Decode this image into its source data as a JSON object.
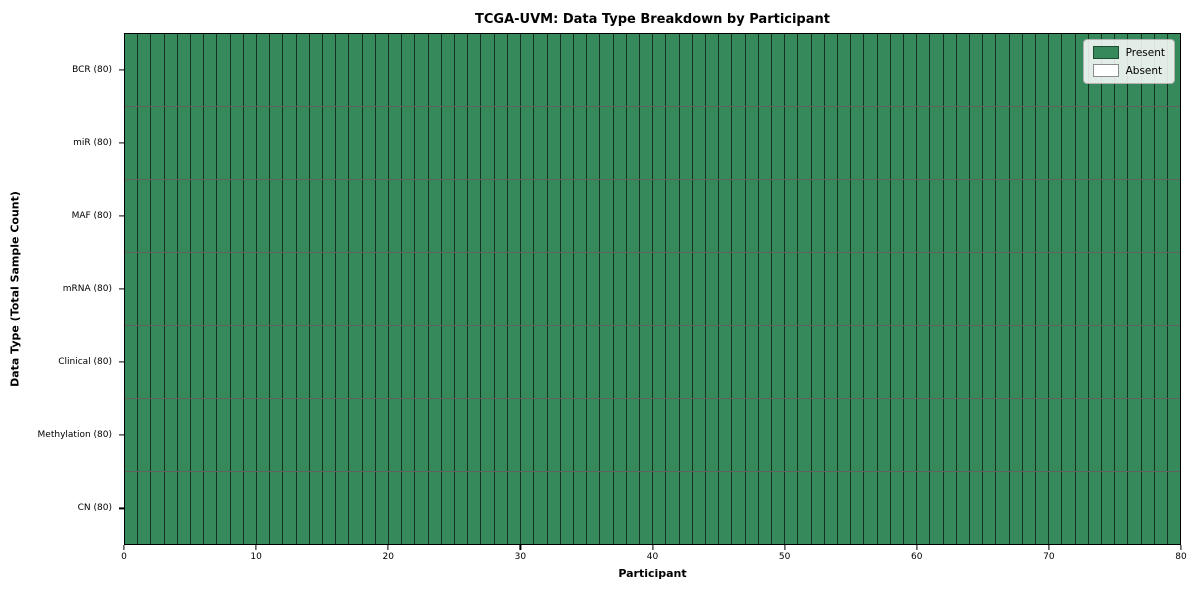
{
  "title": "TCGA-UVM: Data Type Breakdown by Participant",
  "chart_data": {
    "type": "heatmap",
    "title": "TCGA-UVM: Data Type Breakdown by Participant",
    "xlabel": "Participant",
    "ylabel": "Data Type (Total Sample Count)",
    "xlim": [
      0,
      80
    ],
    "x_ticks": [
      0,
      10,
      20,
      30,
      40,
      50,
      60,
      70,
      80
    ],
    "n_participants": 80,
    "grid": "cell-borders",
    "legend_position": "upper right",
    "rows": [
      {
        "name": "BCR",
        "label": "BCR (80)",
        "total": 80,
        "present": 80,
        "absent": 0
      },
      {
        "name": "miR",
        "label": "miR (80)",
        "total": 80,
        "present": 80,
        "absent": 0
      },
      {
        "name": "MAF",
        "label": "MAF (80)",
        "total": 80,
        "present": 80,
        "absent": 0
      },
      {
        "name": "mRNA",
        "label": "mRNA (80)",
        "total": 80,
        "present": 80,
        "absent": 0
      },
      {
        "name": "Clinical",
        "label": "Clinical (80)",
        "total": 80,
        "present": 80,
        "absent": 0
      },
      {
        "name": "Methylation",
        "label": "Methylation (80)",
        "total": 80,
        "present": 80,
        "absent": 0
      },
      {
        "name": "CN",
        "label": "CN (80)",
        "total": 80,
        "present": 80,
        "absent": 0
      }
    ],
    "legend": [
      {
        "label": "Present",
        "color": "#35895b"
      },
      {
        "label": "Absent",
        "color": "#ffffff"
      }
    ],
    "colors": {
      "present": "#35895b",
      "absent": "#ffffff",
      "cell_edge": "rgba(0,0,0,0.62)",
      "spine": "#000000"
    }
  }
}
